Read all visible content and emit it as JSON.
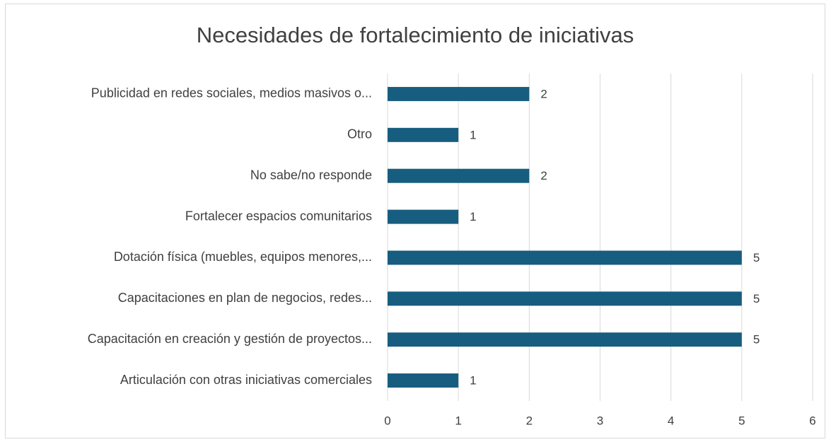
{
  "chart_data": {
    "type": "bar",
    "orientation": "horizontal",
    "title": "Necesidades de fortalecimiento de iniciativas",
    "categories": [
      "Publicidad en redes sociales, medios masivos o...",
      "Otro",
      "No sabe/no responde",
      "Fortalecer espacios comunitarios",
      "Dotación física (muebles, equipos menores,...",
      "Capacitaciones en plan de negocios, redes...",
      "Capacitación en creación y gestión de proyectos...",
      "Articulación con otras iniciativas comerciales"
    ],
    "values": [
      2,
      1,
      2,
      1,
      5,
      5,
      5,
      1
    ],
    "color": "#175d7f",
    "xlim": [
      0,
      6
    ],
    "xticks": [
      0,
      1,
      2,
      3,
      4,
      5,
      6
    ],
    "grid": true
  }
}
